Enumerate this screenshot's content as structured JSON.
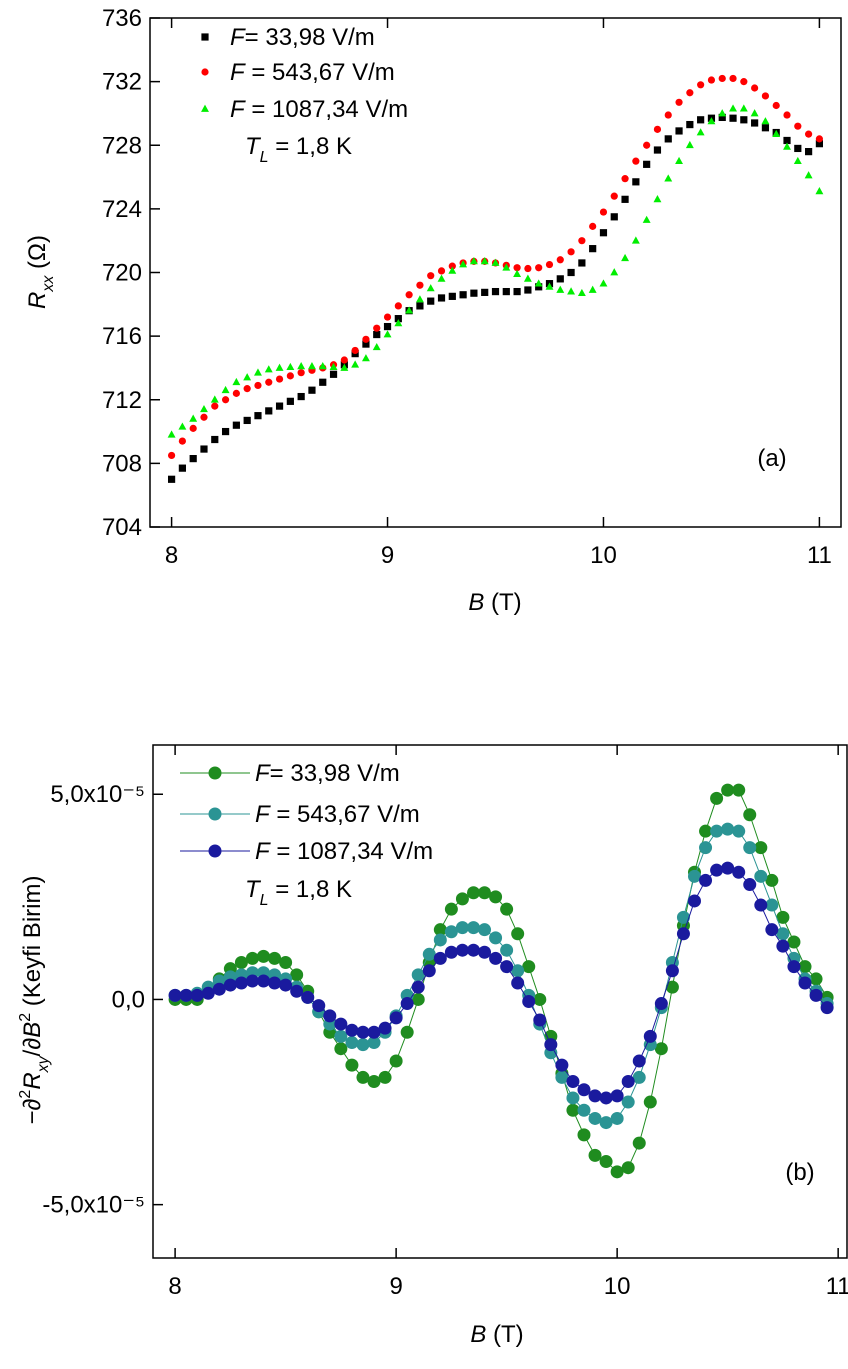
{
  "chart_data": [
    {
      "type": "scatter",
      "panel_label": "(a)",
      "xlabel": {
        "parts": [
          {
            "text": "B",
            "style": "italic"
          },
          {
            "text": " (T)",
            "style": "normal"
          }
        ]
      },
      "ylabel": {
        "parts": [
          {
            "text": "R",
            "style": "italic"
          },
          {
            "text": "xx",
            "style": "italic-sub"
          },
          {
            "text": " (Ω)",
            "style": "normal"
          }
        ]
      },
      "annotation": {
        "parts": [
          {
            "text": "T",
            "style": "italic"
          },
          {
            "text": "L",
            "style": "italic-sub"
          },
          {
            "text": " = 1,8 K",
            "style": "normal"
          }
        ]
      },
      "xlim": [
        7.9,
        11.1
      ],
      "xticks": [
        8,
        9,
        10,
        11
      ],
      "ylim": [
        704,
        736
      ],
      "yticks": [
        704,
        708,
        712,
        716,
        720,
        724,
        728,
        732,
        736
      ],
      "x": [
        8,
        8.05,
        8.1,
        8.15,
        8.2,
        8.25,
        8.3,
        8.35,
        8.4,
        8.45,
        8.5,
        8.55,
        8.6,
        8.65,
        8.7,
        8.75,
        8.8,
        8.85,
        8.9,
        8.95,
        9,
        9.05,
        9.1,
        9.15,
        9.2,
        9.25,
        9.3,
        9.35,
        9.4,
        9.45,
        9.5,
        9.55,
        9.6,
        9.65,
        9.7,
        9.75,
        9.8,
        9.85,
        9.9,
        9.95,
        10,
        10.05,
        10.1,
        10.15,
        10.2,
        10.25,
        10.3,
        10.35,
        10.4,
        10.45,
        10.5,
        10.55,
        10.6,
        10.65,
        10.7,
        10.75,
        10.8,
        10.85,
        10.9,
        10.95,
        11
      ],
      "series": [
        {
          "name": "F= 33,98 V/m",
          "color": "#000000",
          "marker": "square",
          "values": [
            707.0,
            707.7,
            708.3,
            708.9,
            709.5,
            710.0,
            710.4,
            710.7,
            711.0,
            711.3,
            711.6,
            711.9,
            712.2,
            712.6,
            713.1,
            713.6,
            714.2,
            714.9,
            715.5,
            716.1,
            716.6,
            717.1,
            717.6,
            717.9,
            718.2,
            718.4,
            718.5,
            718.6,
            718.7,
            718.75,
            718.8,
            718.8,
            718.8,
            718.9,
            719.1,
            719.3,
            719.6,
            720.0,
            720.6,
            721.5,
            722.5,
            723.5,
            724.6,
            725.7,
            726.8,
            727.7,
            728.4,
            728.9,
            729.3,
            729.6,
            729.7,
            729.75,
            729.7,
            729.6,
            729.4,
            729.1,
            728.8,
            728.3,
            727.8,
            727.6,
            728.1
          ]
        },
        {
          "name": "F = 543,67 V/m",
          "color": "#ff0000",
          "marker": "circle",
          "values": [
            708.5,
            709.4,
            710.2,
            710.9,
            711.6,
            712.0,
            712.4,
            712.7,
            712.9,
            713.1,
            713.3,
            713.5,
            713.7,
            713.85,
            714.0,
            714.2,
            714.5,
            715.1,
            715.8,
            716.5,
            717.2,
            717.9,
            718.6,
            719.2,
            719.8,
            720.1,
            720.4,
            720.6,
            720.7,
            720.7,
            720.6,
            720.45,
            720.3,
            720.25,
            720.3,
            720.5,
            720.8,
            721.3,
            722.0,
            722.9,
            723.8,
            724.8,
            725.9,
            727.0,
            728.0,
            729.0,
            729.9,
            730.7,
            731.3,
            731.8,
            732.1,
            732.2,
            732.2,
            732.0,
            731.6,
            731.1,
            730.5,
            729.9,
            729.2,
            728.7,
            728.4
          ]
        },
        {
          "name": "F = 1087,34 V/m",
          "color": "#00ee00",
          "marker": "triangle",
          "values": [
            709.8,
            710.3,
            710.8,
            711.4,
            712.0,
            712.6,
            713.1,
            713.4,
            713.7,
            713.9,
            714.0,
            714.05,
            714.1,
            714.1,
            714.1,
            714.05,
            714.0,
            714.2,
            714.6,
            715.3,
            716.1,
            716.8,
            717.6,
            718.3,
            719.0,
            719.6,
            720.1,
            720.5,
            720.7,
            720.7,
            720.6,
            720.3,
            719.9,
            719.6,
            719.3,
            719.1,
            718.9,
            718.8,
            718.7,
            718.9,
            719.3,
            720.0,
            720.9,
            722.0,
            723.3,
            724.6,
            725.9,
            727.0,
            728.0,
            728.8,
            729.5,
            730.0,
            730.3,
            730.3,
            730.0,
            729.5,
            728.7,
            727.9,
            727.0,
            726.1,
            725.1
          ]
        }
      ]
    },
    {
      "type": "line",
      "panel_label": "(b)",
      "xlabel": {
        "parts": [
          {
            "text": "B",
            "style": "italic"
          },
          {
            "text": " (T)",
            "style": "normal"
          }
        ]
      },
      "ylabel": {
        "parts": [
          {
            "text": "−∂",
            "style": "normal"
          },
          {
            "text": "2",
            "style": "sup"
          },
          {
            "text": "R",
            "style": "italic"
          },
          {
            "text": "xy",
            "style": "italic-sub"
          },
          {
            "text": "/∂",
            "style": "normal"
          },
          {
            "text": "B",
            "style": "italic"
          },
          {
            "text": "2",
            "style": "sup"
          },
          {
            "text": " (Keyfi Birim)",
            "style": "normal"
          }
        ]
      },
      "annotation": {
        "parts": [
          {
            "text": "T",
            "style": "italic"
          },
          {
            "text": "L",
            "style": "italic-sub"
          },
          {
            "text": " = 1,8 K",
            "style": "normal"
          }
        ]
      },
      "xlim": [
        7.9,
        11.04
      ],
      "xticks": [
        8,
        9,
        10,
        11
      ],
      "ylim": [
        -6.3e-05,
        6.2e-05
      ],
      "yticks": [
        {
          "value": -5e-05,
          "label": "-5,0x10⁻⁵"
        },
        {
          "value": 0,
          "label": "0,0"
        },
        {
          "value": 5e-05,
          "label": "5,0x10⁻⁵"
        }
      ],
      "x": [
        8,
        8.05,
        8.1,
        8.15,
        8.2,
        8.25,
        8.3,
        8.35,
        8.4,
        8.45,
        8.5,
        8.55,
        8.6,
        8.65,
        8.7,
        8.75,
        8.8,
        8.85,
        8.9,
        8.95,
        9,
        9.05,
        9.1,
        9.15,
        9.2,
        9.25,
        9.3,
        9.35,
        9.4,
        9.45,
        9.5,
        9.55,
        9.6,
        9.65,
        9.7,
        9.75,
        9.8,
        9.85,
        9.9,
        9.95,
        10,
        10.05,
        10.1,
        10.15,
        10.2,
        10.25,
        10.3,
        10.35,
        10.4,
        10.45,
        10.5,
        10.55,
        10.6,
        10.65,
        10.7,
        10.75,
        10.8,
        10.85,
        10.9,
        10.95
      ],
      "series": [
        {
          "name": "F= 33,98 V/m",
          "color": "#1f8c1f",
          "values": [
            0,
            0,
            0,
            2e-06,
            5e-06,
            7.5e-06,
            9e-06,
            1e-05,
            1.05e-05,
            1e-05,
            9e-06,
            6e-06,
            2e-06,
            -3e-06,
            -8e-06,
            -1.2e-05,
            -1.6e-05,
            -1.9e-05,
            -2e-05,
            -1.9e-05,
            -1.5e-05,
            -8e-06,
            0,
            9e-06,
            1.7e-05,
            2.2e-05,
            2.45e-05,
            2.6e-05,
            2.6e-05,
            2.5e-05,
            2.2e-05,
            1.6e-05,
            8e-06,
            0,
            -9e-06,
            -1.8e-05,
            -2.7e-05,
            -3.3e-05,
            -3.8e-05,
            -3.95e-05,
            -4.2e-05,
            -4.1e-05,
            -3.5e-05,
            -2.5e-05,
            -1.2e-05,
            3e-06,
            1.8e-05,
            3.1e-05,
            4.1e-05,
            4.9e-05,
            5.1e-05,
            5.1e-05,
            4.5e-05,
            3.7e-05,
            2.9e-05,
            2e-05,
            1.4e-05,
            8e-06,
            5e-06,
            5e-07
          ]
        },
        {
          "name": "F = 543,67 V/m",
          "color": "#2b9494",
          "values": [
            1e-06,
            1e-06,
            1.5e-06,
            3e-06,
            4.5e-06,
            5.5e-06,
            6e-06,
            6.5e-06,
            6.5e-06,
            6e-06,
            5e-06,
            3e-06,
            5e-07,
            -3e-06,
            -6e-06,
            -9e-06,
            -1.05e-05,
            -1.1e-05,
            -1.05e-05,
            -8e-06,
            -4e-06,
            1e-06,
            6e-06,
            1.1e-05,
            1.45e-05,
            1.65e-05,
            1.75e-05,
            1.75e-05,
            1.7e-05,
            1.5e-05,
            1.2e-05,
            7e-06,
            1e-06,
            -6e-06,
            -1.3e-05,
            -1.9e-05,
            -2.4e-05,
            -2.7e-05,
            -2.9e-05,
            -3e-05,
            -2.9e-05,
            -2.5e-05,
            -1.9e-05,
            -1.1e-05,
            -2e-06,
            9e-06,
            2e-05,
            3e-05,
            3.7e-05,
            4.1e-05,
            4.15e-05,
            4.1e-05,
            3.7e-05,
            3e-05,
            2.3e-05,
            1.6e-05,
            1e-05,
            5e-06,
            2e-06,
            -1e-06
          ]
        },
        {
          "name": "F = 1087,34 V/m",
          "color": "#1a1a9e",
          "values": [
            1e-06,
            1e-06,
            1e-06,
            1.5e-06,
            2.5e-06,
            3.5e-06,
            4e-06,
            4.5e-06,
            4.5e-06,
            4e-06,
            3.5e-06,
            2e-06,
            5e-07,
            -1.5e-06,
            -4e-06,
            -6e-06,
            -7.5e-06,
            -8e-06,
            -8e-06,
            -7e-06,
            -4.5e-06,
            -1e-06,
            3e-06,
            7e-06,
            1e-05,
            1.15e-05,
            1.2e-05,
            1.2e-05,
            1.15e-05,
            1e-05,
            8e-06,
            4e-06,
            -5e-07,
            -5e-06,
            -1.1e-05,
            -1.6e-05,
            -2e-05,
            -2.2e-05,
            -2.35e-05,
            -2.4e-05,
            -2.35e-05,
            -2e-05,
            -1.5e-05,
            -9e-06,
            -1e-06,
            7e-06,
            1.6e-05,
            2.4e-05,
            2.9e-05,
            3.15e-05,
            3.2e-05,
            3.1e-05,
            2.8e-05,
            2.3e-05,
            1.7e-05,
            1.3e-05,
            8e-06,
            4e-06,
            1e-06,
            -2e-06
          ]
        }
      ]
    }
  ]
}
